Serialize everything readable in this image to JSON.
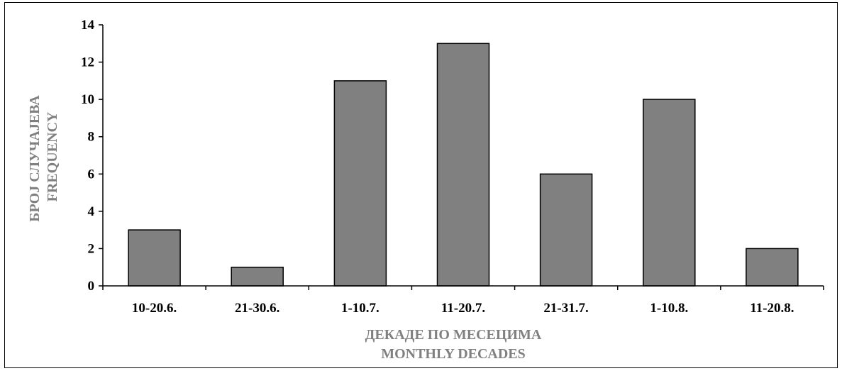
{
  "chart_data": {
    "type": "bar",
    "categories": [
      "10-20.6.",
      "21-30.6.",
      "1-10.7.",
      "11-20.7.",
      "21-31.7.",
      "1-10.8.",
      "11-20.8."
    ],
    "values": [
      3,
      1,
      11,
      13,
      6,
      10,
      2
    ],
    "ylim": [
      0,
      14
    ],
    "yticks": [
      0,
      2,
      4,
      6,
      8,
      10,
      12,
      14
    ],
    "ylabel": [
      "БРОЈ СЛУЧАЈЕВА",
      "FREQUENCY"
    ],
    "xlabel": [
      "ДЕКАДЕ ПО МЕСЕЦИМА",
      "MONTHLY DECADES"
    ],
    "grid": false,
    "legend": "none",
    "colors": {
      "bar_fill": "#808080",
      "bar_stroke": "#000000",
      "axis": "#000000",
      "axis_title": "#808080",
      "tick_label": "#000000"
    }
  }
}
